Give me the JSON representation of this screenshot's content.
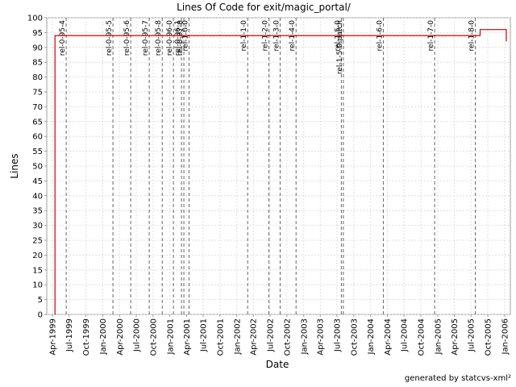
{
  "footer_text": "generated by statcvs-xml²",
  "chart_data": {
    "type": "line",
    "title": "Lines Of Code for exit/magic_portal/",
    "xlabel": "Date",
    "ylabel": "Lines",
    "ylim": [
      0,
      100
    ],
    "xlim": [
      "1999-03-01",
      "2006-02-01"
    ],
    "grid": true,
    "yticks": [
      "0",
      "5",
      "10",
      "15",
      "20",
      "25",
      "30",
      "35",
      "40",
      "45",
      "50",
      "55",
      "60",
      "65",
      "70",
      "75",
      "80",
      "85",
      "90",
      "95",
      "100"
    ],
    "xticks": [
      {
        "date": "1999-04-01",
        "label": "Apr-1999"
      },
      {
        "date": "1999-07-01",
        "label": "Jul-1999"
      },
      {
        "date": "1999-10-01",
        "label": "Oct-1999"
      },
      {
        "date": "2000-01-01",
        "label": "Jan-2000"
      },
      {
        "date": "2000-04-01",
        "label": "Apr-2000"
      },
      {
        "date": "2000-07-01",
        "label": "Jul-2000"
      },
      {
        "date": "2000-10-01",
        "label": "Oct-2000"
      },
      {
        "date": "2001-01-01",
        "label": "Jan-2001"
      },
      {
        "date": "2001-04-01",
        "label": "Apr-2001"
      },
      {
        "date": "2001-07-01",
        "label": "Jul-2001"
      },
      {
        "date": "2001-10-01",
        "label": "Oct-2001"
      },
      {
        "date": "2002-01-01",
        "label": "Jan-2002"
      },
      {
        "date": "2002-04-01",
        "label": "Apr-2002"
      },
      {
        "date": "2002-07-01",
        "label": "Jul-2002"
      },
      {
        "date": "2002-10-01",
        "label": "Oct-2002"
      },
      {
        "date": "2003-01-01",
        "label": "Jan-2003"
      },
      {
        "date": "2003-04-01",
        "label": "Apr-2003"
      },
      {
        "date": "2003-07-01",
        "label": "Jul-2003"
      },
      {
        "date": "2003-10-01",
        "label": "Oct-2003"
      },
      {
        "date": "2004-01-01",
        "label": "Jan-2004"
      },
      {
        "date": "2004-04-01",
        "label": "Apr-2004"
      },
      {
        "date": "2004-07-01",
        "label": "Jul-2004"
      },
      {
        "date": "2004-10-01",
        "label": "Oct-2004"
      },
      {
        "date": "2005-01-01",
        "label": "Jan-2005"
      },
      {
        "date": "2005-04-01",
        "label": "Apr-2005"
      },
      {
        "date": "2005-07-01",
        "label": "Jul-2005"
      },
      {
        "date": "2005-10-01",
        "label": "Oct-2005"
      },
      {
        "date": "2006-01-01",
        "label": "Jan-2006"
      }
    ],
    "series": [
      {
        "color": "#cc0000",
        "points": [
          {
            "x": "1999-04-15",
            "y": 0
          },
          {
            "x": "1999-04-15",
            "y": 94
          },
          {
            "x": "2005-08-20",
            "y": 94
          },
          {
            "x": "2005-08-20",
            "y": 96
          },
          {
            "x": "2006-01-10",
            "y": 96
          },
          {
            "x": "2006-01-10",
            "y": 92
          }
        ]
      }
    ],
    "markers": [
      {
        "date": "1999-06-15",
        "label": "rel-0-95-4"
      },
      {
        "date": "2000-02-25",
        "label": "rel-0-95-5"
      },
      {
        "date": "2000-06-01",
        "label": "rel-0-95-6"
      },
      {
        "date": "2000-09-10",
        "label": "rel-0-95-7"
      },
      {
        "date": "2000-11-20",
        "label": "rel-0-95-8"
      },
      {
        "date": "2001-01-20",
        "label": "rel-0-96-0"
      },
      {
        "date": "2001-03-05",
        "label": "rel-0-96-1"
      },
      {
        "date": "2001-03-18",
        "label": "rel-0-97-0"
      },
      {
        "date": "2001-04-15",
        "label": "rel-1-0-0"
      },
      {
        "date": "2002-03-01",
        "label": "rel-1-1-0"
      },
      {
        "date": "2002-06-25",
        "label": "rel-1-2-0"
      },
      {
        "date": "2002-08-25",
        "label": "rel-1-3-0"
      },
      {
        "date": "2002-11-20",
        "label": "rel-1-4-0"
      },
      {
        "date": "2003-07-25",
        "label": "rel-1-5-0"
      },
      {
        "date": "2003-08-05",
        "label": "rel-1-5-0-patch"
      },
      {
        "date": "2004-03-10",
        "label": "rel-1-6-0"
      },
      {
        "date": "2004-12-15",
        "label": "rel-1-7-0"
      },
      {
        "date": "2005-07-25",
        "label": "rel-1-8-0"
      }
    ]
  }
}
